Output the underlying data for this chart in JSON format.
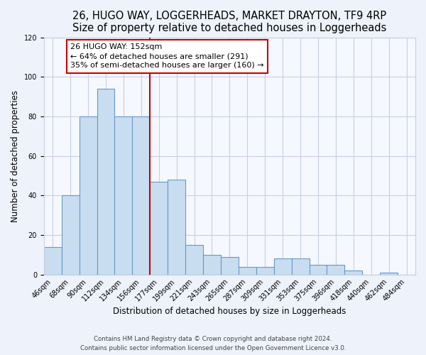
{
  "title": "26, HUGO WAY, LOGGERHEADS, MARKET DRAYTON, TF9 4RP",
  "subtitle": "Size of property relative to detached houses in Loggerheads",
  "xlabel": "Distribution of detached houses by size in Loggerheads",
  "ylabel": "Number of detached properties",
  "bar_labels": [
    "46sqm",
    "68sqm",
    "90sqm",
    "112sqm",
    "134sqm",
    "156sqm",
    "177sqm",
    "199sqm",
    "221sqm",
    "243sqm",
    "265sqm",
    "287sqm",
    "309sqm",
    "331sqm",
    "353sqm",
    "375sqm",
    "396sqm",
    "418sqm",
    "440sqm",
    "462sqm",
    "484sqm"
  ],
  "bar_values": [
    14,
    40,
    80,
    94,
    80,
    80,
    47,
    48,
    15,
    10,
    9,
    4,
    4,
    8,
    8,
    5,
    5,
    2,
    0,
    1,
    0
  ],
  "bar_color": "#c8ddf0",
  "bar_edge_color": "#6699cc",
  "vline_color": "#cc0000",
  "annotation_text": "26 HUGO WAY: 152sqm\n← 64% of detached houses are smaller (291)\n35% of semi-detached houses are larger (160) →",
  "annotation_box_color": "#ffffff",
  "annotation_box_edge_color": "#cc0000",
  "ylim": [
    0,
    120
  ],
  "yticks": [
    0,
    20,
    40,
    60,
    80,
    100,
    120
  ],
  "footer_line1": "Contains HM Land Registry data © Crown copyright and database right 2024.",
  "footer_line2": "Contains public sector information licensed under the Open Government Licence v3.0.",
  "bg_color": "#eef2fb",
  "plot_bg_color": "#f5f8ff",
  "grid_color": "#c8d0e0",
  "title_fontsize": 10.5,
  "tick_fontsize": 7,
  "ylabel_fontsize": 8.5,
  "xlabel_fontsize": 8.5,
  "annotation_fontsize": 8
}
